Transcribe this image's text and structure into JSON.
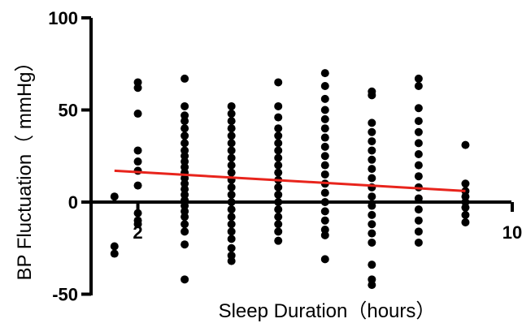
{
  "chart_data": {
    "type": "scatter",
    "title": "",
    "xlabel": "Sleep Duration（hours）",
    "ylabel": "BP Fluctuation（ mmHg）",
    "xlim": [
      1,
      10
    ],
    "ylim": [
      -50,
      100
    ],
    "x_ticks": [
      2,
      10
    ],
    "y_ticks": [
      100,
      50,
      0,
      -50
    ],
    "grid": false,
    "legend": "none",
    "colors": {
      "points": "#000000",
      "trend": "#e8241c",
      "axis": "#000000"
    },
    "series": [
      {
        "points": [
          [
            1.5,
            3
          ],
          [
            1.5,
            -24
          ],
          [
            1.5,
            -28
          ],
          [
            2,
            65
          ],
          [
            2,
            62
          ],
          [
            2,
            48
          ],
          [
            2,
            28
          ],
          [
            2,
            22
          ],
          [
            2,
            17
          ],
          [
            2,
            9
          ],
          [
            2,
            -6
          ],
          [
            2,
            -10
          ],
          [
            2,
            -12
          ],
          [
            3,
            67
          ],
          [
            3,
            52
          ],
          [
            3,
            47
          ],
          [
            3,
            44
          ],
          [
            3,
            40
          ],
          [
            3,
            36
          ],
          [
            3,
            32
          ],
          [
            3,
            28
          ],
          [
            3,
            25
          ],
          [
            3,
            22
          ],
          [
            3,
            19
          ],
          [
            3,
            16
          ],
          [
            3,
            13
          ],
          [
            3,
            10
          ],
          [
            3,
            7
          ],
          [
            3,
            4
          ],
          [
            3,
            1
          ],
          [
            3,
            -2
          ],
          [
            3,
            -5
          ],
          [
            3,
            -8
          ],
          [
            3,
            -12
          ],
          [
            3,
            -16
          ],
          [
            3,
            -23
          ],
          [
            3,
            -42
          ],
          [
            4,
            52
          ],
          [
            4,
            48
          ],
          [
            4,
            44
          ],
          [
            4,
            40
          ],
          [
            4,
            36
          ],
          [
            4,
            32
          ],
          [
            4,
            28
          ],
          [
            4,
            24
          ],
          [
            4,
            20
          ],
          [
            4,
            16
          ],
          [
            4,
            12
          ],
          [
            4,
            8
          ],
          [
            4,
            4
          ],
          [
            4,
            0
          ],
          [
            4,
            -4
          ],
          [
            4,
            -8
          ],
          [
            4,
            -12
          ],
          [
            4,
            -16
          ],
          [
            4,
            -20
          ],
          [
            4,
            -25
          ],
          [
            4,
            -29
          ],
          [
            4,
            -32
          ],
          [
            5,
            65
          ],
          [
            5,
            52
          ],
          [
            5,
            46
          ],
          [
            5,
            40
          ],
          [
            5,
            36
          ],
          [
            5,
            32
          ],
          [
            5,
            28
          ],
          [
            5,
            24
          ],
          [
            5,
            20
          ],
          [
            5,
            16
          ],
          [
            5,
            12
          ],
          [
            5,
            8
          ],
          [
            5,
            4
          ],
          [
            5,
            0
          ],
          [
            5,
            -4
          ],
          [
            5,
            -8
          ],
          [
            5,
            -12
          ],
          [
            5,
            -16
          ],
          [
            5,
            -21
          ],
          [
            6,
            70
          ],
          [
            6,
            63
          ],
          [
            6,
            56
          ],
          [
            6,
            50
          ],
          [
            6,
            45
          ],
          [
            6,
            40
          ],
          [
            6,
            35
          ],
          [
            6,
            30
          ],
          [
            6,
            25
          ],
          [
            6,
            20
          ],
          [
            6,
            15
          ],
          [
            6,
            10
          ],
          [
            6,
            5
          ],
          [
            6,
            0
          ],
          [
            6,
            -5
          ],
          [
            6,
            -10
          ],
          [
            6,
            -15
          ],
          [
            6,
            -18
          ],
          [
            6,
            -31
          ],
          [
            7,
            60
          ],
          [
            7,
            58
          ],
          [
            7,
            43
          ],
          [
            7,
            38
          ],
          [
            7,
            33
          ],
          [
            7,
            28
          ],
          [
            7,
            23
          ],
          [
            7,
            18
          ],
          [
            7,
            13
          ],
          [
            7,
            8
          ],
          [
            7,
            3
          ],
          [
            7,
            -2
          ],
          [
            7,
            -7
          ],
          [
            7,
            -12
          ],
          [
            7,
            -17
          ],
          [
            7,
            -22
          ],
          [
            7,
            -34
          ],
          [
            7,
            -42
          ],
          [
            7,
            -45
          ],
          [
            8,
            67
          ],
          [
            8,
            63
          ],
          [
            8,
            51
          ],
          [
            8,
            44
          ],
          [
            8,
            38
          ],
          [
            8,
            32
          ],
          [
            8,
            26
          ],
          [
            8,
            20
          ],
          [
            8,
            14
          ],
          [
            8,
            8
          ],
          [
            8,
            2
          ],
          [
            8,
            -4
          ],
          [
            8,
            -10
          ],
          [
            8,
            -16
          ],
          [
            8,
            -22
          ],
          [
            9,
            31
          ],
          [
            9,
            10
          ],
          [
            9,
            6
          ],
          [
            9,
            3
          ],
          [
            9,
            0
          ],
          [
            9,
            -3
          ],
          [
            9,
            -7
          ],
          [
            9,
            -11
          ]
        ]
      }
    ],
    "trend_line": {
      "x": [
        1.5,
        9
      ],
      "y": [
        17,
        6
      ]
    }
  }
}
